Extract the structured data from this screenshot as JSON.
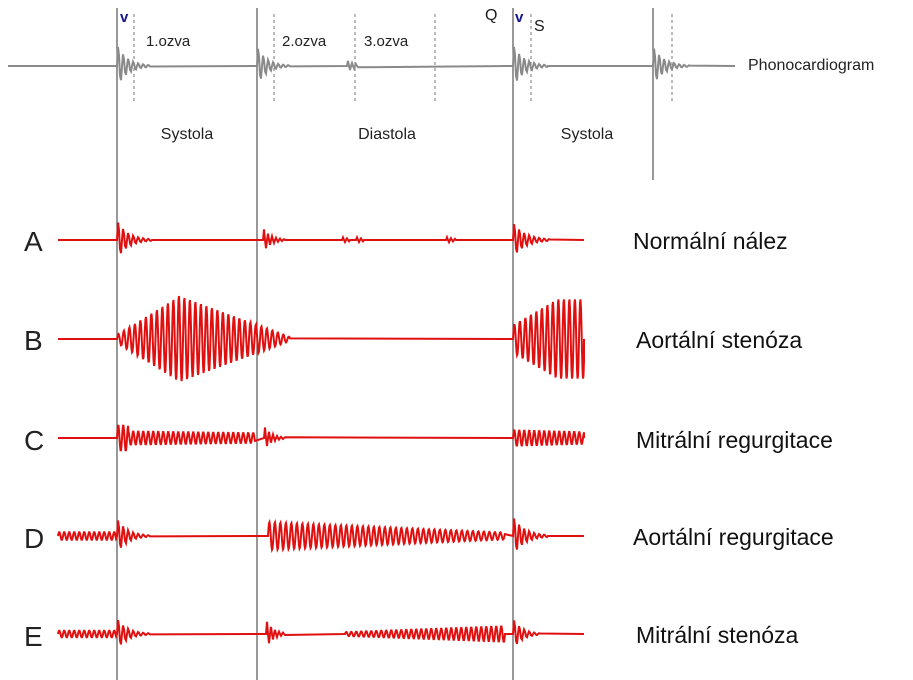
{
  "phonocardiogram": {
    "label": "Phonocardiogram",
    "sound_labels": [
      "1.ozva",
      "2.ozva",
      "3.ozva"
    ],
    "markers": [
      "Q",
      "S"
    ],
    "marker_glyph": "v"
  },
  "phases": [
    "Systola",
    "Diastola",
    "Systola"
  ],
  "rows": [
    {
      "letter": "A",
      "name": "Normální nález"
    },
    {
      "letter": "B",
      "name": "Aortální stenóza"
    },
    {
      "letter": "C",
      "name": "Mitrální regurgitace"
    },
    {
      "letter": "D",
      "name": "Aortální regurgitace"
    },
    {
      "letter": "E",
      "name": "Mitrální stenóza"
    }
  ],
  "colors": {
    "signal_gray": "#8a8a8a",
    "signal_red": "#e01010",
    "guide_line": "#555555",
    "dashed_line": "#777777"
  }
}
